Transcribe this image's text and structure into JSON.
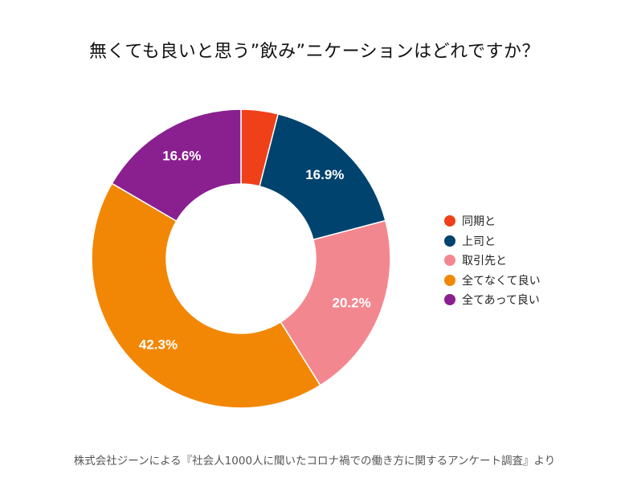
{
  "chart_data": {
    "type": "pie",
    "title": "無くても良いと思う”飲み”ニケーションはどれですか？",
    "donut": true,
    "legend_position": "right",
    "categories": [
      "同期と",
      "上司と",
      "取引先と",
      "全てなくて良い",
      "全てあって良い"
    ],
    "values": [
      4.0,
      16.9,
      20.2,
      42.3,
      16.6
    ],
    "data_labels": [
      "",
      "16.9%",
      "20.2%",
      "42.3%",
      "16.6%"
    ],
    "colors": [
      "#f0401a",
      "#00436e",
      "#f3878f",
      "#f28705",
      "#8a1f8f"
    ]
  },
  "source_note": "株式会社ジーンによる『社会人1000人に聞いたコロナ禍での働き方に関するアンケート調査』より"
}
